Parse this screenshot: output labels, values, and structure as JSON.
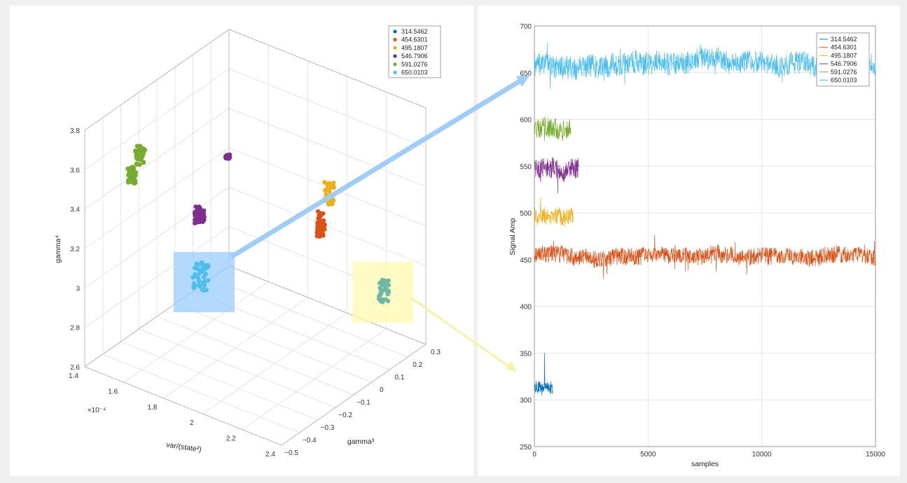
{
  "chart_data": [
    {
      "type": "scatter",
      "is3d": true,
      "xlabel": "var/(state²)",
      "x_exponent": "×10⁻⁴",
      "ylabel": "gamma³",
      "zlabel": "gamma⁴",
      "xlim": [
        1.4,
        2.4
      ],
      "ylim": [
        -0.5,
        0.3
      ],
      "zlim": [
        2.6,
        3.8
      ],
      "x_ticks": [
        "1.4",
        "1.6",
        "1.8",
        "2",
        "2.2",
        "2.4"
      ],
      "y_ticks": [
        "-0.5",
        "-0.4",
        "-0.3",
        "-0.2",
        "-0.1",
        "0",
        "0.1",
        "0.2",
        "0.3"
      ],
      "z_ticks": [
        "2.6",
        "2.8",
        "3",
        "3.2",
        "3.4",
        "3.6",
        "3.8"
      ],
      "legend_position": "top-right",
      "grid": true,
      "series": [
        {
          "name": "314.5462",
          "color": "#0072bd",
          "points": []
        },
        {
          "name": "454.6301",
          "color": "#d95319",
          "points": [
            [
              2.2,
              0.2,
              3.0
            ],
            [
              2.21,
              0.21,
              3.03
            ],
            [
              2.19,
              0.19,
              2.98
            ]
          ]
        },
        {
          "name": "495.1807",
          "color": "#edb120",
          "points": [
            [
              2.05,
              0.1,
              3.55
            ],
            [
              2.07,
              0.11,
              3.58
            ],
            [
              2.04,
              0.09,
              3.53
            ]
          ]
        },
        {
          "name": "546.7906",
          "color": "#7e2f8e",
          "points": [
            [
              1.55,
              -0.1,
              3.45
            ],
            [
              1.56,
              -0.09,
              3.48
            ],
            [
              1.8,
              0.2,
              3.8
            ]
          ]
        },
        {
          "name": "591.0276",
          "color": "#77ac30",
          "points": [
            [
              1.45,
              -0.4,
              3.72
            ],
            [
              1.47,
              -0.39,
              3.76
            ],
            [
              1.43,
              -0.41,
              3.66
            ]
          ]
        },
        {
          "name": "650.0103",
          "color": "#4dbeee",
          "points": [
            [
              1.6,
              -0.05,
              3.1
            ],
            [
              1.62,
              -0.04,
              3.14
            ],
            [
              2.1,
              -0.4,
              3.0
            ]
          ]
        }
      ]
    },
    {
      "type": "line",
      "xlabel": "samples",
      "ylabel": "Signal Amp",
      "xlim": [
        0,
        15000
      ],
      "ylim": [
        250,
        700
      ],
      "x_ticks": [
        "0",
        "5000",
        "10000",
        "15000"
      ],
      "y_ticks": [
        "250",
        "300",
        "350",
        "400",
        "450",
        "500",
        "550",
        "600",
        "650",
        "700"
      ],
      "legend_position": "top-right",
      "grid": true,
      "series": [
        {
          "name": "314.5462",
          "color": "#0072bd",
          "x_range": [
            0,
            800
          ],
          "mean": 315,
          "noise": 7,
          "spike": {
            "x": 450,
            "y": 350
          }
        },
        {
          "name": "454.6301",
          "color": "#d95319",
          "x_range": [
            0,
            15000
          ],
          "mean": 455,
          "noise": 9
        },
        {
          "name": "495.1807",
          "color": "#edb120",
          "x_range": [
            0,
            1700
          ],
          "mean": 497,
          "noise": 10
        },
        {
          "name": "546.7906",
          "color": "#7e2f8e",
          "x_range": [
            0,
            1950
          ],
          "mean": 545,
          "noise": 11
        },
        {
          "name": "591.0276",
          "color": "#77ac30",
          "x_range": [
            0,
            1600
          ],
          "mean": 587,
          "noise": 11
        },
        {
          "name": "650.0103",
          "color": "#4dbeee",
          "x_range": [
            0,
            15000
          ],
          "mean": 660,
          "noise": 12
        }
      ]
    }
  ]
}
